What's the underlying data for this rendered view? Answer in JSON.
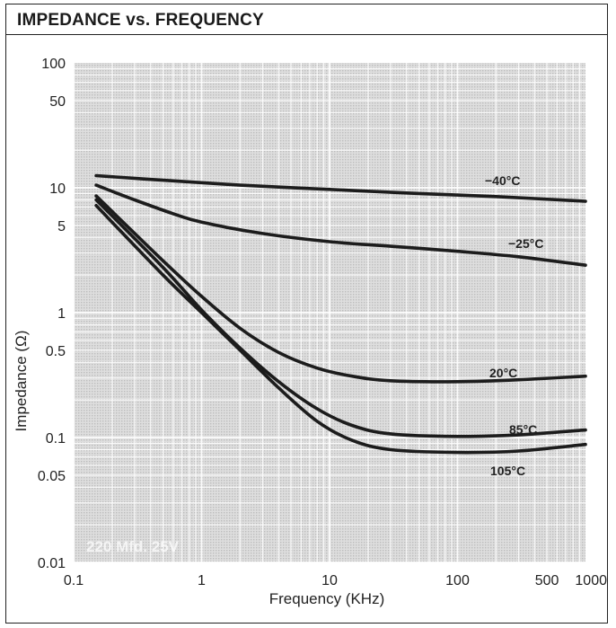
{
  "chart_data": {
    "type": "line",
    "title": "IMPEDANCE vs. FREQUENCY",
    "xlabel": "Frequency (KHz)",
    "ylabel": "Impedance (Ω)",
    "x_scale": "log",
    "y_scale": "log",
    "xlim": [
      0.1,
      1000
    ],
    "ylim": [
      0.01,
      100
    ],
    "x_ticks": [
      {
        "value": 0.1,
        "label": "0.1"
      },
      {
        "value": 1,
        "label": "1"
      },
      {
        "value": 10,
        "label": "10"
      },
      {
        "value": 100,
        "label": "100"
      },
      {
        "value": 500,
        "label": "500"
      },
      {
        "value": 1000,
        "label": "1000"
      }
    ],
    "y_ticks": [
      {
        "value": 0.01,
        "label": "0.01"
      },
      {
        "value": 0.05,
        "label": "0.05"
      },
      {
        "value": 0.1,
        "label": "0.1"
      },
      {
        "value": 0.5,
        "label": "0.5"
      },
      {
        "value": 1,
        "label": "1"
      },
      {
        "value": 5,
        "label": "5"
      },
      {
        "value": 10,
        "label": "10"
      },
      {
        "value": 50,
        "label": "50"
      },
      {
        "value": 100,
        "label": "100"
      }
    ],
    "grid": true,
    "series": [
      {
        "name": "−40°C",
        "points": [
          [
            0.15,
            12.5
          ],
          [
            0.5,
            11.5
          ],
          [
            2,
            10.5
          ],
          [
            10,
            9.7
          ],
          [
            50,
            9.0
          ],
          [
            200,
            8.5
          ],
          [
            1000,
            7.8
          ]
        ]
      },
      {
        "name": "−25°C",
        "points": [
          [
            0.15,
            10.5
          ],
          [
            0.3,
            8.0
          ],
          [
            0.6,
            6.2
          ],
          [
            1,
            5.3
          ],
          [
            3,
            4.3
          ],
          [
            10,
            3.7
          ],
          [
            30,
            3.4
          ],
          [
            100,
            3.1
          ],
          [
            300,
            2.8
          ],
          [
            1000,
            2.4
          ]
        ]
      },
      {
        "name": "20°C",
        "points": [
          [
            0.15,
            8.6
          ],
          [
            0.5,
            2.6
          ],
          [
            1,
            1.35
          ],
          [
            2,
            0.75
          ],
          [
            4,
            0.48
          ],
          [
            8,
            0.36
          ],
          [
            15,
            0.31
          ],
          [
            30,
            0.285
          ],
          [
            100,
            0.28
          ],
          [
            300,
            0.29
          ],
          [
            1000,
            0.31
          ]
        ]
      },
      {
        "name": "85°C",
        "points": [
          [
            0.15,
            8.0
          ],
          [
            0.5,
            2.3
          ],
          [
            1,
            1.05
          ],
          [
            2,
            0.52
          ],
          [
            4,
            0.28
          ],
          [
            8,
            0.17
          ],
          [
            15,
            0.125
          ],
          [
            30,
            0.107
          ],
          [
            100,
            0.102
          ],
          [
            300,
            0.105
          ],
          [
            1000,
            0.115
          ]
        ]
      },
      {
        "name": "105°C",
        "points": [
          [
            0.15,
            7.2
          ],
          [
            0.5,
            2.0
          ],
          [
            1,
            1.0
          ],
          [
            2,
            0.5
          ],
          [
            4,
            0.25
          ],
          [
            8,
            0.135
          ],
          [
            15,
            0.095
          ],
          [
            30,
            0.08
          ],
          [
            100,
            0.076
          ],
          [
            300,
            0.078
          ],
          [
            1000,
            0.088
          ]
        ]
      }
    ],
    "annotations": [
      "220 Mfd. 25V"
    ]
  }
}
